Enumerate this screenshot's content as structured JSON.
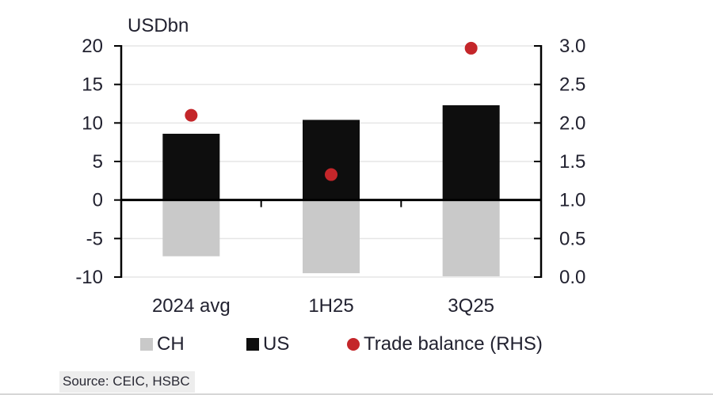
{
  "source": {
    "text": "Source: CEIC, HSBC"
  },
  "colors": {
    "background": "#ffffff",
    "ch_bar": "#c9c9c9",
    "us_bar": "#0e0e0e",
    "trade_dot": "#c4262a",
    "gridline": "#e6e6e6",
    "axis": "#000000",
    "text": "#222230",
    "source_highlight": "#ededed"
  },
  "legend": [
    {
      "label": "CH",
      "swatch": "square",
      "color": "#c9c9c9"
    },
    {
      "label": "US",
      "swatch": "square",
      "color": "#0e0e0e"
    },
    {
      "label": "Trade balance (RHS)",
      "swatch": "dot",
      "color": "#c4262a"
    }
  ],
  "chart_data": {
    "type": "bar",
    "title": "USDbn",
    "categories": [
      "2024 avg",
      "1H25",
      "3Q25"
    ],
    "series": [
      {
        "name": "CH",
        "type": "bar",
        "axis": "left",
        "color": "#c9c9c9",
        "values": [
          -7.3,
          -9.5,
          -9.9
        ]
      },
      {
        "name": "US",
        "type": "bar",
        "axis": "left",
        "color": "#0e0e0e",
        "values": [
          8.6,
          10.4,
          12.3
        ]
      },
      {
        "name": "Trade balance (RHS)",
        "type": "scatter",
        "axis": "right",
        "color": "#c4262a",
        "values": [
          2.1,
          1.33,
          2.97
        ]
      }
    ],
    "left_axis": {
      "label": "USDbn",
      "min": -10,
      "max": 20,
      "ticks": [
        20,
        15,
        10,
        5,
        0,
        -5,
        -10
      ],
      "tick_labels": [
        "20",
        "15",
        "10",
        "5",
        "0",
        "-5",
        "-10"
      ]
    },
    "right_axis": {
      "min": 0,
      "max": 3,
      "ticks": [
        3,
        2.5,
        2,
        1.5,
        1,
        0.5,
        0
      ],
      "tick_labels": [
        "3.0",
        "2.5",
        "2.0",
        "1.5",
        "1.0",
        "0.5",
        "0.0"
      ]
    },
    "grid": true,
    "legend_position": "bottom"
  }
}
